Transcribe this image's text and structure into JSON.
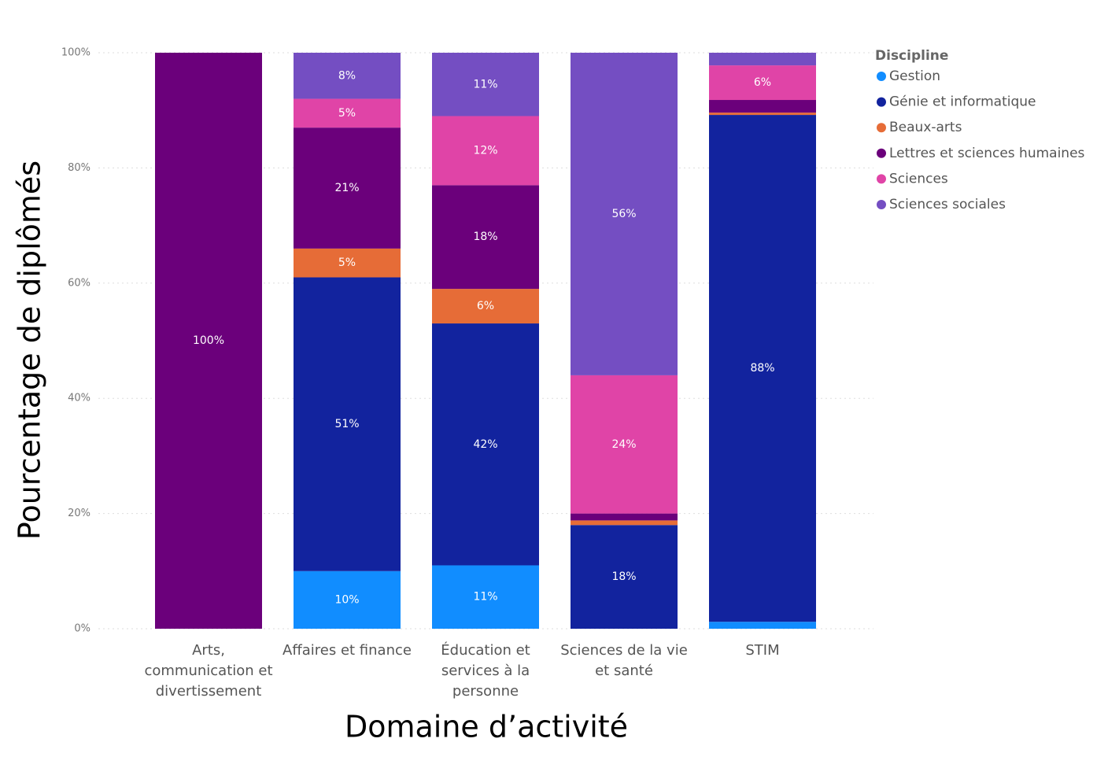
{
  "chart_data": {
    "type": "stacked_bar",
    "x_label": "Domaine d’activité",
    "y_label": "Pourcentage de diplômés",
    "legend_title": "Discipline",
    "legend_position": "right",
    "grid": true,
    "categories": [
      "Arts, communication et divertissement",
      "Affaires et finance",
      "Éducation et services à la personne",
      "Sciences de la vie et santé",
      "STIM"
    ],
    "ylim": [
      0,
      100
    ],
    "yticks": [
      {
        "value": 0,
        "label": "0%"
      },
      {
        "value": 20,
        "label": "20%"
      },
      {
        "value": 40,
        "label": "40%"
      },
      {
        "value": 60,
        "label": "60%"
      },
      {
        "value": 80,
        "label": "80%"
      },
      {
        "value": 100,
        "label": "100%"
      }
    ],
    "series": [
      {
        "name": "Gestion",
        "color": "#118dff",
        "values": [
          0,
          10,
          11,
          0,
          1.2
        ],
        "value_labels": [
          null,
          "10%",
          "11%",
          null,
          null
        ]
      },
      {
        "name": "Génie et informatique",
        "color": "#12239e",
        "values": [
          0,
          51,
          42,
          18,
          88
        ],
        "value_labels": [
          null,
          "51%",
          "42%",
          "18%",
          "88%"
        ]
      },
      {
        "name": "Beaux-arts",
        "color": "#e66c37",
        "values": [
          0,
          5,
          6,
          0.8,
          0.4
        ],
        "value_labels": [
          null,
          "5%",
          "6%",
          null,
          null
        ]
      },
      {
        "name": "Lettres et sciences humaines",
        "color": "#6b007b",
        "values": [
          100,
          21,
          18,
          1.2,
          2.2
        ],
        "value_labels": [
          "100%",
          "21%",
          "18%",
          null,
          null
        ]
      },
      {
        "name": "Sciences",
        "color": "#e044a7",
        "values": [
          0,
          5,
          12,
          24,
          6
        ],
        "value_labels": [
          null,
          "5%",
          "12%",
          "24%",
          "6%"
        ]
      },
      {
        "name": "Sciences sociales",
        "color": "#744ec2",
        "values": [
          0,
          8,
          11,
          56,
          2.2
        ],
        "value_labels": [
          null,
          "8%",
          "11%",
          "56%",
          null
        ]
      }
    ]
  }
}
